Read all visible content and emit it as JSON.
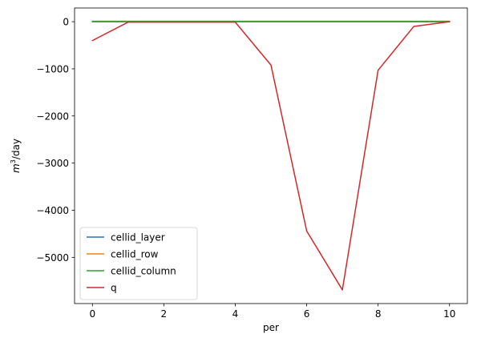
{
  "chart_data": {
    "type": "line",
    "title": "",
    "xlabel": "per",
    "ylabel_base": "m",
    "ylabel_sup": "3",
    "ylabel_rest": "/day",
    "x": [
      0,
      1,
      2,
      3,
      4,
      5,
      6,
      7,
      8,
      9,
      10
    ],
    "xlim": [
      -0.5,
      10.5
    ],
    "ylim": [
      -5980,
      290
    ],
    "xticks": [
      0,
      2,
      4,
      6,
      8,
      10
    ],
    "xtick_labels": [
      "0",
      "2",
      "4",
      "6",
      "8",
      "10"
    ],
    "yticks": [
      0,
      -1000,
      -2000,
      -3000,
      -4000,
      -5000
    ],
    "ytick_labels": [
      "0",
      "−1000",
      "−2000",
      "−3000",
      "−4000",
      "−5000"
    ],
    "grid": false,
    "legend_position": "lower-left",
    "series": [
      {
        "name": "cellid_layer",
        "color": "#1f77b4",
        "values": [
          0,
          0,
          0,
          0,
          0,
          0,
          0,
          0,
          0,
          0,
          0
        ]
      },
      {
        "name": "cellid_row",
        "color": "#ff7f0e",
        "values": [
          9,
          9,
          9,
          9,
          9,
          9,
          9,
          9,
          9,
          9,
          9
        ]
      },
      {
        "name": "cellid_column",
        "color": "#2ca02c",
        "values": [
          4,
          4,
          4,
          4,
          4,
          4,
          4,
          4,
          4,
          4,
          4
        ]
      },
      {
        "name": "q",
        "color": "#d62728",
        "values": [
          -400,
          -10,
          -10,
          -10,
          -10,
          -920,
          -4440,
          -5690,
          -1030,
          -100,
          0
        ]
      }
    ]
  }
}
